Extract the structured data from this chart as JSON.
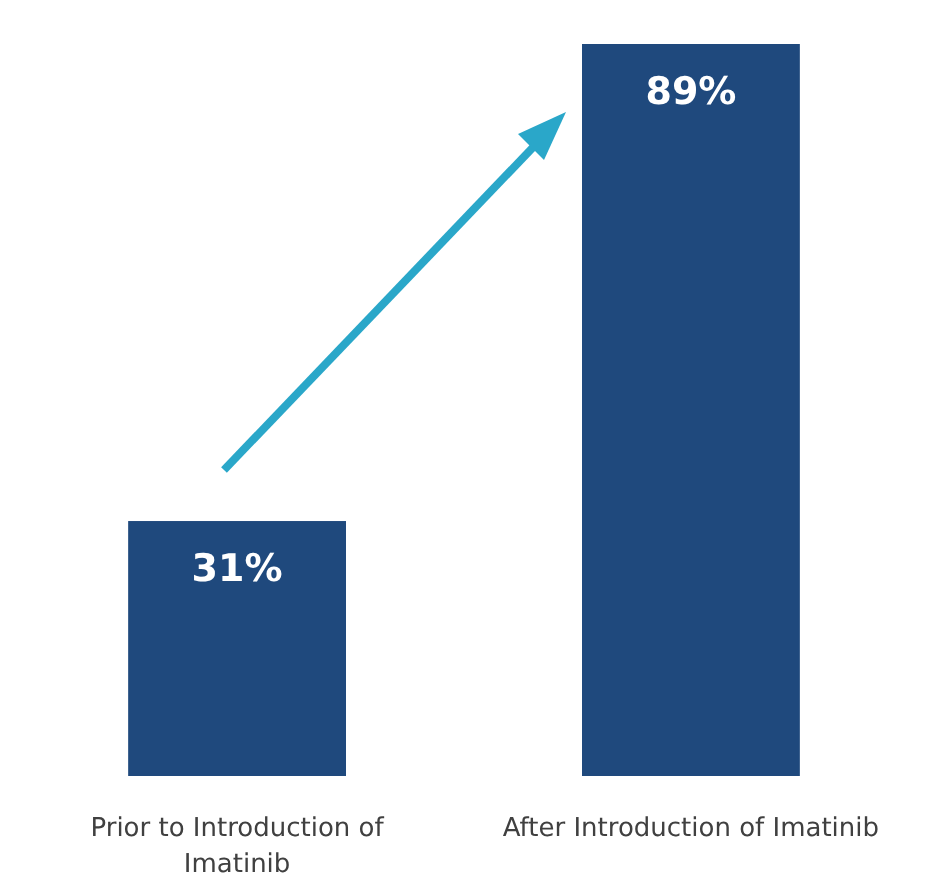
{
  "chart_data": {
    "type": "bar",
    "categories": [
      "Prior to Introduction of Imatinib",
      "After Introduction of Imatinib"
    ],
    "values": [
      31,
      89
    ],
    "value_labels": [
      "31%",
      "89%"
    ],
    "color": "#1f497d"
  }
}
